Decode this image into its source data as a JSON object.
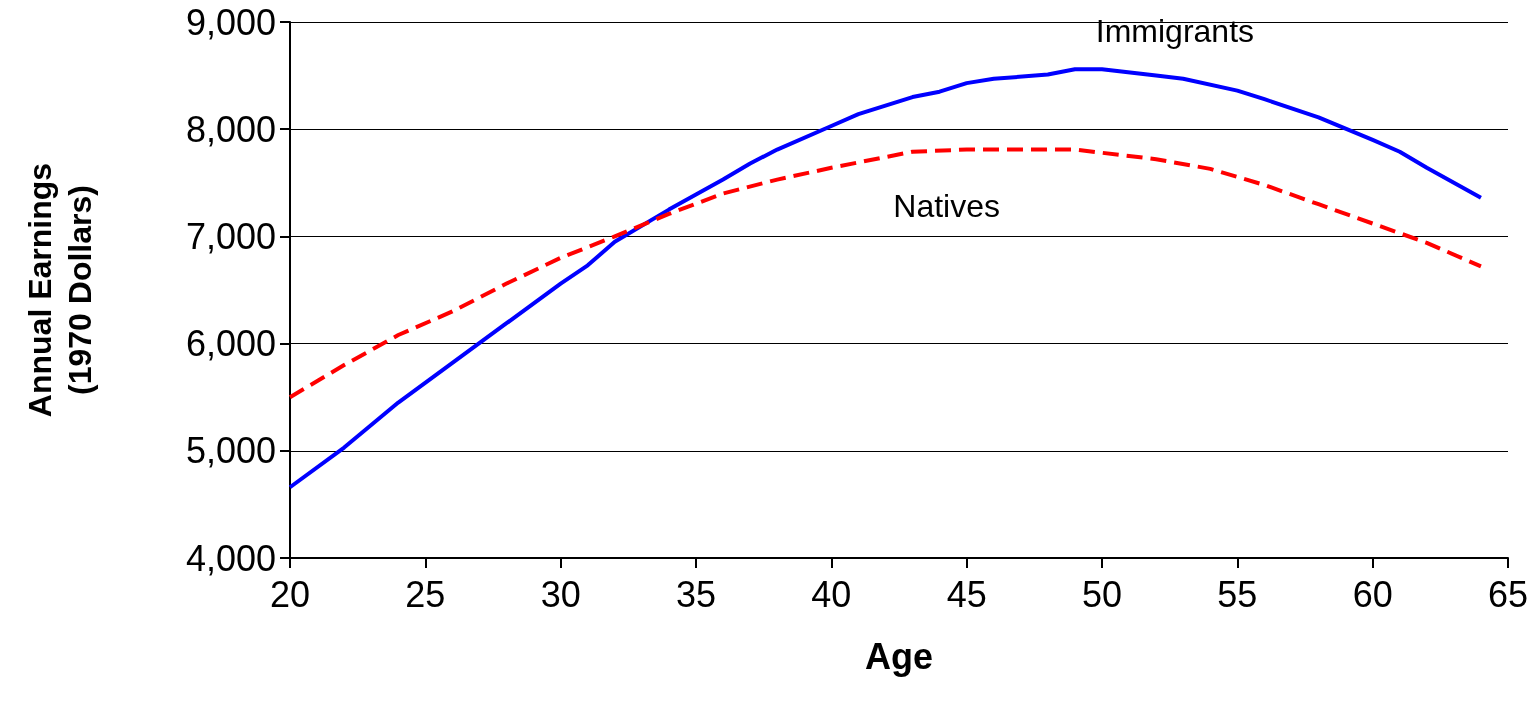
{
  "chart_data": {
    "type": "line",
    "xlabel": "Age",
    "ylabel": "Annual Earnings\n(1970 Dollars)",
    "xlim": [
      20,
      65
    ],
    "xticks": [
      20,
      25,
      30,
      35,
      40,
      45,
      50,
      55,
      60,
      65
    ],
    "ylim": [
      4000,
      9000
    ],
    "yticks": [
      {
        "value": 4000,
        "label": "4,000"
      },
      {
        "value": 5000,
        "label": "5,000"
      },
      {
        "value": 6000,
        "label": "6,000"
      },
      {
        "value": 7000,
        "label": "7,000"
      },
      {
        "value": 8000,
        "label": "8,000"
      },
      {
        "value": 9000,
        "label": "9,000"
      }
    ],
    "grid": "y",
    "marker": "none",
    "series": [
      {
        "name": "Immigrants",
        "color": "#0000ff",
        "line_style": "solid",
        "x": [
          20,
          22,
          24,
          26,
          28,
          30,
          31,
          32,
          34,
          35,
          36,
          37,
          38,
          40,
          41,
          42,
          43,
          44,
          45,
          46,
          48,
          49,
          50,
          52,
          53,
          55,
          56,
          58,
          60,
          61,
          62,
          64
        ],
        "values": [
          4660,
          5030,
          5450,
          5820,
          6190,
          6560,
          6730,
          6950,
          7250,
          7390,
          7530,
          7680,
          7810,
          8030,
          8140,
          8220,
          8300,
          8350,
          8430,
          8470,
          8510,
          8560,
          8560,
          8500,
          8470,
          8360,
          8280,
          8110,
          7900,
          7790,
          7640,
          7360
        ]
      },
      {
        "name": "Natives",
        "color": "#ff0000",
        "line_style": "dashed",
        "x": [
          20,
          22,
          24,
          26,
          28,
          30,
          32,
          34,
          36,
          38,
          40,
          42,
          43,
          45,
          47,
          49,
          50,
          52,
          54,
          56,
          58,
          60,
          62,
          64
        ],
        "values": [
          5500,
          5800,
          6080,
          6300,
          6560,
          6800,
          7000,
          7210,
          7400,
          7530,
          7640,
          7740,
          7790,
          7810,
          7810,
          7810,
          7780,
          7720,
          7630,
          7480,
          7300,
          7120,
          6940,
          6720
        ]
      }
    ]
  }
}
